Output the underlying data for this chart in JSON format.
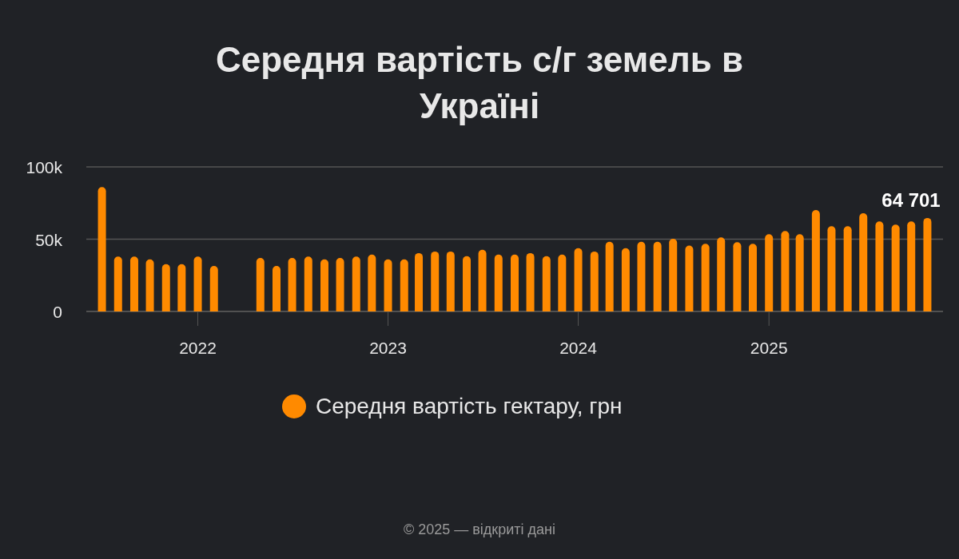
{
  "chart_data": {
    "type": "bar",
    "title": "Середня вартість с/г земель в Україні",
    "x": [
      "2021-07",
      "2021-08",
      "2021-09",
      "2021-10",
      "2021-11",
      "2021-12",
      "2022-01",
      "2022-02",
      "2022-03",
      "2022-04",
      "2022-05",
      "2022-06",
      "2022-07",
      "2022-08",
      "2022-09",
      "2022-10",
      "2022-11",
      "2022-12",
      "2023-01",
      "2023-02",
      "2023-03",
      "2023-04",
      "2023-05",
      "2023-06",
      "2023-07",
      "2023-08",
      "2023-09",
      "2023-10",
      "2023-11",
      "2023-12",
      "2024-01",
      "2024-02",
      "2024-03",
      "2024-04",
      "2024-05",
      "2024-06",
      "2024-07",
      "2024-08",
      "2024-09",
      "2024-10",
      "2024-11",
      "2024-12",
      "2025-01",
      "2025-02",
      "2025-03",
      "2025-04",
      "2025-05",
      "2025-06",
      "2025-07",
      "2025-08",
      "2025-09",
      "2025-10",
      "2025-11"
    ],
    "series": [
      {
        "name": "Середня вартість гектару, грн",
        "color": "#ff8a00",
        "values": [
          86000,
          38000,
          38000,
          36000,
          32700,
          32700,
          38000,
          31500,
          null,
          null,
          37000,
          31500,
          37000,
          38000,
          36000,
          37000,
          38000,
          39300,
          36000,
          36000,
          40400,
          41500,
          41500,
          38200,
          42700,
          39300,
          39300,
          40400,
          38200,
          39300,
          43800,
          41500,
          48200,
          43800,
          48200,
          48200,
          50300,
          45600,
          46800,
          51200,
          47900,
          46800,
          53400,
          55700,
          53400,
          70100,
          59000,
          59000,
          67900,
          62300,
          60100,
          62300,
          64701
        ],
        "value_labels": [
          null,
          null,
          null,
          null,
          null,
          null,
          null,
          null,
          null,
          null,
          null,
          null,
          null,
          null,
          null,
          null,
          null,
          null,
          null,
          null,
          null,
          null,
          null,
          null,
          null,
          null,
          null,
          null,
          null,
          null,
          null,
          null,
          null,
          null,
          null,
          null,
          null,
          null,
          null,
          null,
          null,
          null,
          null,
          null,
          null,
          null,
          null,
          null,
          null,
          null,
          null,
          null,
          "64 701"
        ]
      }
    ],
    "xlim": [
      "2021-06",
      "2025-12"
    ],
    "xticks": [
      {
        "value": "2022",
        "label": "2022"
      },
      {
        "value": "2023",
        "label": "2023"
      },
      {
        "value": "2024",
        "label": "2024"
      },
      {
        "value": "2025",
        "label": "2025"
      }
    ],
    "ylim": [
      0,
      100000
    ],
    "yticks": [
      0,
      {
        "value": 50000,
        "label": "50k"
      },
      {
        "value": 100000,
        "label": "100k"
      }
    ],
    "grid": "y",
    "legend": "bottom",
    "annotations": [
      "© 2025 — відкриті дані"
    ]
  }
}
